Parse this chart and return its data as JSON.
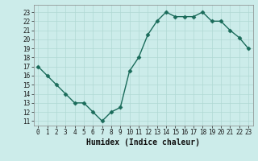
{
  "x": [
    0,
    1,
    2,
    3,
    4,
    5,
    6,
    7,
    8,
    9,
    10,
    11,
    12,
    13,
    14,
    15,
    16,
    17,
    18,
    19,
    20,
    21,
    22,
    23
  ],
  "y": [
    17,
    16,
    15,
    14,
    13,
    13,
    12,
    11,
    12,
    12.5,
    16.5,
    18,
    20.5,
    22,
    23,
    22.5,
    22.5,
    22.5,
    23,
    22,
    22,
    21,
    20.2,
    19
  ],
  "line_color": "#1a6b5a",
  "marker_color": "#1a6b5a",
  "bg_color": "#ccecea",
  "grid_color": "#b0d8d4",
  "xlabel": "Humidex (Indice chaleur)",
  "ylim": [
    10.5,
    23.8
  ],
  "xlim": [
    -0.5,
    23.5
  ],
  "yticks": [
    11,
    12,
    13,
    14,
    15,
    16,
    17,
    18,
    19,
    20,
    21,
    22,
    23
  ],
  "xticks": [
    0,
    1,
    2,
    3,
    4,
    5,
    6,
    7,
    8,
    9,
    10,
    11,
    12,
    13,
    14,
    15,
    16,
    17,
    18,
    19,
    20,
    21,
    22,
    23
  ],
  "tick_fontsize": 5.5,
  "xlabel_fontsize": 7.0,
  "marker_size": 2.5,
  "linewidth": 1.0
}
